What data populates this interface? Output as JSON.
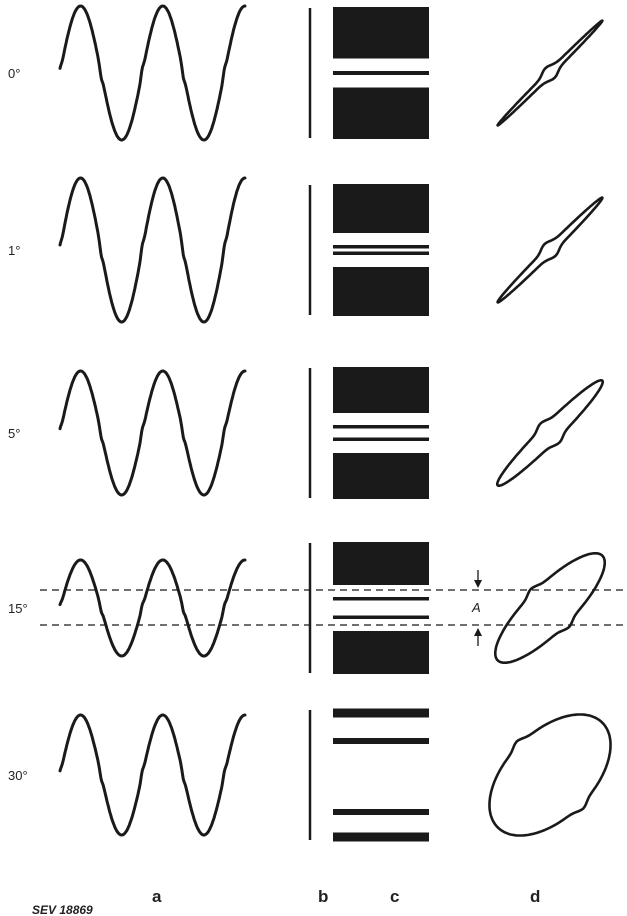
{
  "rows": [
    {
      "angle_label": "0°",
      "phase_deg": 0
    },
    {
      "angle_label": "1°",
      "phase_deg": 1
    },
    {
      "angle_label": "5°",
      "phase_deg": 5
    },
    {
      "angle_label": "15°",
      "phase_deg": 15
    },
    {
      "angle_label": "30°",
      "phase_deg": 30
    }
  ],
  "column_labels": {
    "a": "a",
    "b": "b",
    "c": "c",
    "d": "d"
  },
  "annotation": "A",
  "figure_code": "SEV 18869",
  "ink_color": "#1a1a1a"
}
